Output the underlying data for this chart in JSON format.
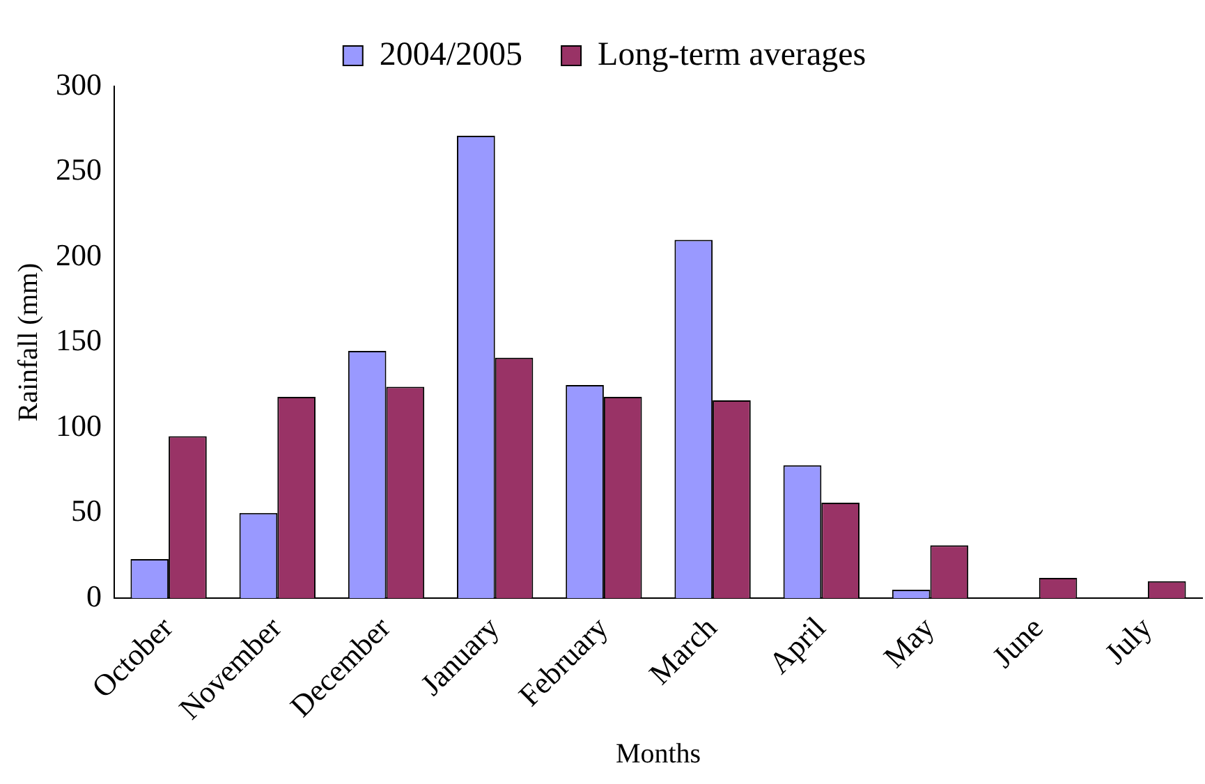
{
  "chart_data": {
    "type": "bar",
    "xlabel": "Months",
    "ylabel": "Rainfall (mm)",
    "categories": [
      "October",
      "November",
      "December",
      "January",
      "February",
      "March",
      "April",
      "May",
      "June",
      "July"
    ],
    "series": [
      {
        "name": "2004/2005",
        "color": "#9999ff",
        "values": [
          23,
          50,
          145,
          271,
          125,
          210,
          78,
          5,
          0,
          0
        ]
      },
      {
        "name": "Long-term averages",
        "color": "#993366",
        "values": [
          95,
          118,
          124,
          141,
          118,
          116,
          56,
          31,
          12,
          10
        ]
      }
    ],
    "ylim": [
      0,
      300
    ],
    "yticks": [
      0,
      50,
      100,
      150,
      200,
      250,
      300
    ],
    "grid": false,
    "legend": "top"
  }
}
